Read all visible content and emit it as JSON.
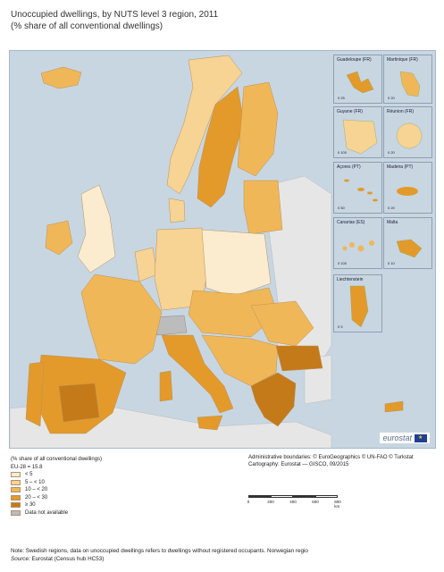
{
  "title": {
    "line1": "Unoccupied dwellings, by NUTS level 3 region, 2011",
    "line2": "(% share of all conventional dwellings)"
  },
  "colors": {
    "sea": "#c8d6e2",
    "lt5": "#fbecd0",
    "c5_10": "#f7d394",
    "c10_20": "#f0b758",
    "c20_30": "#e39a2a",
    "ge30": "#c47a18",
    "na": "#bcbcbc",
    "outside": "#e6e6e6"
  },
  "insets": [
    {
      "label": "Guadeloupe (FR)",
      "scale": "0   25"
    },
    {
      "label": "Martinique (FR)",
      "scale": "0   20"
    },
    {
      "label": "Guyane (FR)",
      "scale": "0   100"
    },
    {
      "label": "Réunion (FR)",
      "scale": "0   20"
    },
    {
      "label": "Açores (PT)",
      "scale": "0   50"
    },
    {
      "label": "Madeira (PT)",
      "scale": "0   20"
    },
    {
      "label": "Canarias (ES)",
      "scale": "0   100"
    },
    {
      "label": "Malta",
      "scale": "0   10"
    },
    {
      "label": "Liechtenstein",
      "scale": "0   5"
    }
  ],
  "logo": "eurostat",
  "legend": {
    "heading": "(% share of all conventional dwellings)",
    "eu_value": "EU-28 = 15.8",
    "classes": [
      {
        "label": "< 5",
        "color": "#fbecd0"
      },
      {
        "label": "5 – < 10",
        "color": "#f7d394"
      },
      {
        "label": "10 – < 20",
        "color": "#f0b758"
      },
      {
        "label": "20 – < 30",
        "color": "#e39a2a"
      },
      {
        "label": "≥ 30",
        "color": "#c47a18"
      },
      {
        "label": "Data not available",
        "color": "#bcbcbc"
      }
    ]
  },
  "credits": {
    "line1": "Administrative boundaries: © EuroGeographics © UN-FAO © Turkstat",
    "line2": "Cartography: Eurostat — GISCO, 09/2015"
  },
  "scalebar": {
    "ticks": [
      "0",
      "200",
      "400",
      "600",
      "800 km"
    ]
  },
  "note": {
    "line1": "Note: Swedish regions, data on unoccupied dwellings refers to dwellings without registered occupants. Norwegian regio",
    "source_label": "Source:",
    "source_text": " Eurostat (Census hub HC53)"
  }
}
